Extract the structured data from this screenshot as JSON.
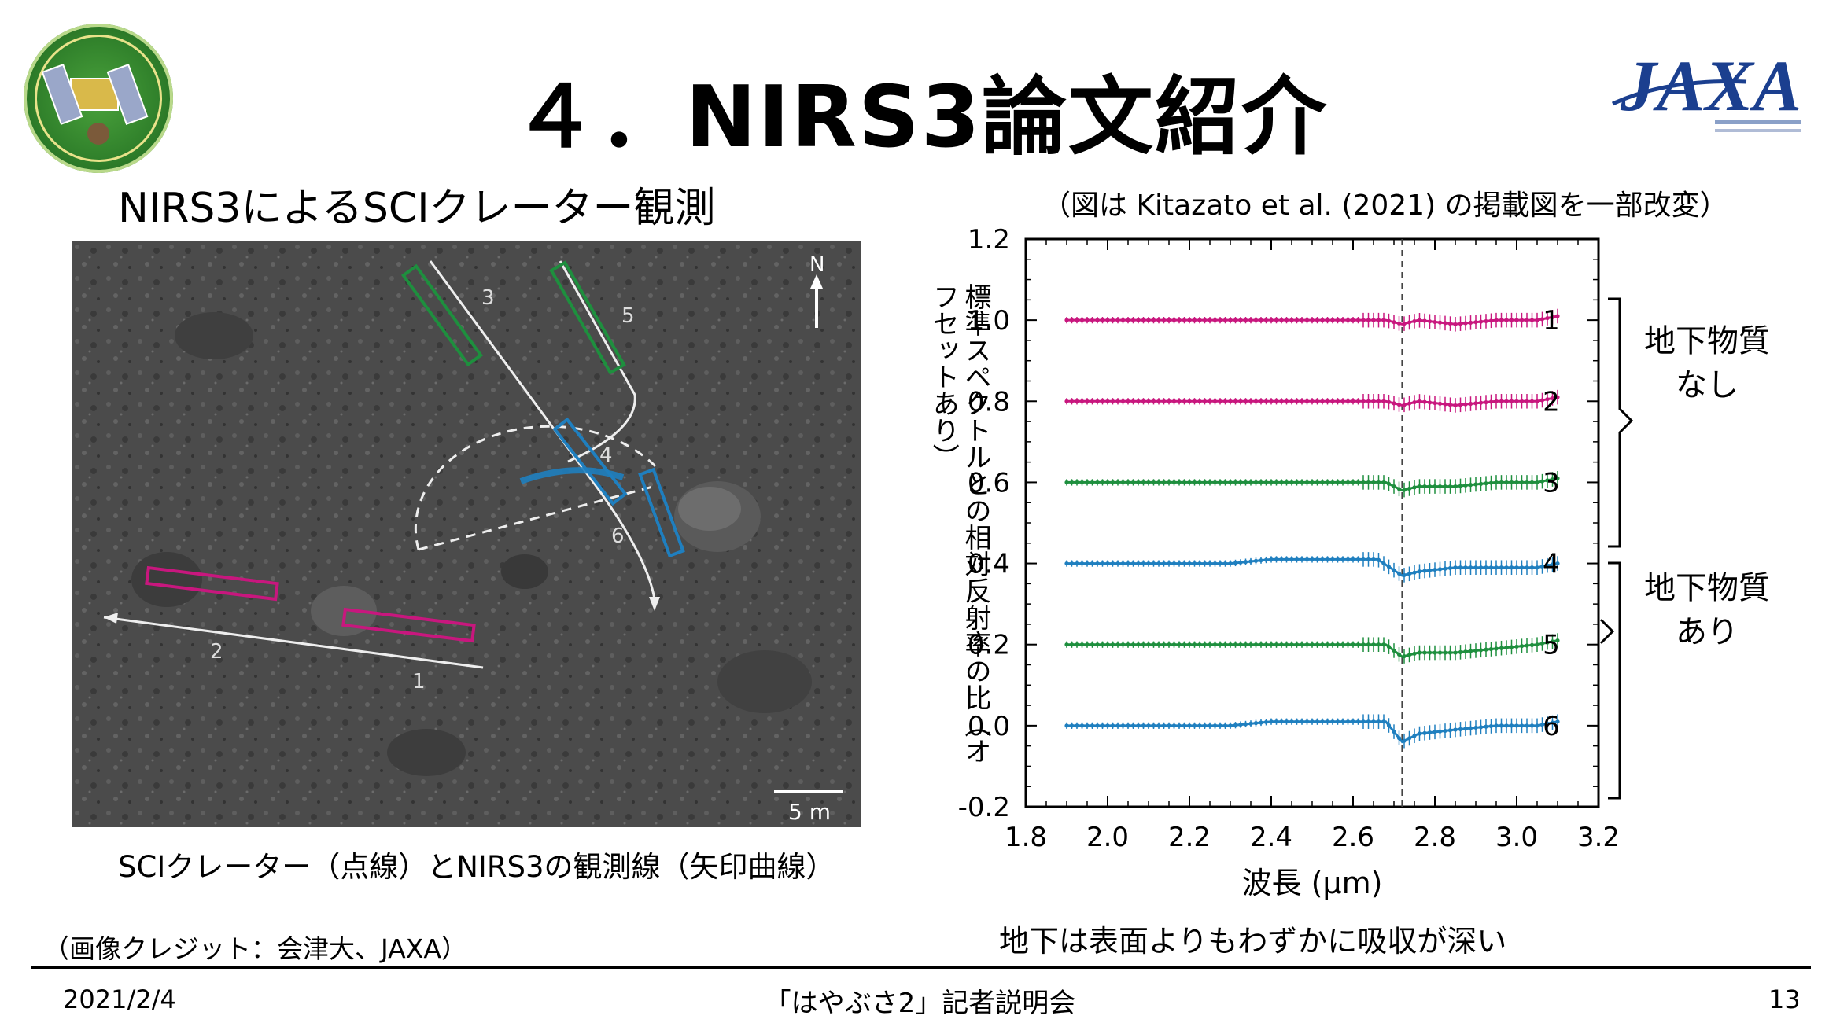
{
  "slide": {
    "title": "４．NIRS3論文紹介",
    "subtitle_left": "NIRS3によるSCIクレーター観測",
    "credit_note": "（図は Kitazato et al. (2021) の掲載図を一部改変）",
    "photo_caption": "SCIクレーター（点線）とNIRS3の観測線（矢印曲線）",
    "image_credit": "（画像クレジット：会津大、JAXA）",
    "note_bottom": "地下は表面よりもわずかに吸収が深い",
    "bracket_label_1": [
      "地下物質",
      "なし"
    ],
    "bracket_label_2": [
      "地下物質",
      "あり"
    ],
    "footer_date": "2021/2/4",
    "footer_event": "「はやぶさ2」記者説明会",
    "footer_page": "13"
  },
  "logos": {
    "hayabusa2_logo": "HAYABUSA2 mission emblem",
    "jaxa_logo": "JAXA"
  },
  "photo": {
    "north_label": "N",
    "scale_label": "5 m",
    "track_labels": [
      "1",
      "2",
      "3",
      "4",
      "5",
      "6"
    ]
  },
  "colors": {
    "magenta": "#c8177e",
    "green": "#1e8f3e",
    "blue": "#1f7fbf"
  },
  "chart_data": {
    "type": "line",
    "xlabel": "波長 (μm)",
    "ylabel": "標準スペクトルとの相対反射率の比（オフセットあり）",
    "xlim": [
      1.8,
      3.2
    ],
    "ylim": [
      -0.2,
      1.2
    ],
    "x_ticks": [
      "1.8",
      "2.0",
      "2.2",
      "2.4",
      "2.6",
      "2.8",
      "3.0",
      "3.2"
    ],
    "y_ticks": [
      "-0.2",
      "0.0",
      "0.2",
      "0.4",
      "0.6",
      "0.8",
      "1.0",
      "1.2"
    ],
    "vline_x": 2.72,
    "series": [
      {
        "name": "1",
        "offset": 1.0,
        "color": "#c8177e",
        "x": [
          1.9,
          2.0,
          2.1,
          2.2,
          2.3,
          2.4,
          2.5,
          2.6,
          2.68,
          2.72,
          2.76,
          2.85,
          2.95,
          3.05,
          3.1
        ],
        "y": [
          1.0,
          1.0,
          1.0,
          1.0,
          1.0,
          1.0,
          1.0,
          1.0,
          1.0,
          0.99,
          1.0,
          0.99,
          1.0,
          1.0,
          1.01
        ]
      },
      {
        "name": "2",
        "offset": 0.8,
        "color": "#c8177e",
        "x": [
          1.9,
          2.0,
          2.1,
          2.2,
          2.3,
          2.4,
          2.5,
          2.6,
          2.68,
          2.72,
          2.76,
          2.85,
          2.95,
          3.05,
          3.1
        ],
        "y": [
          0.8,
          0.8,
          0.8,
          0.8,
          0.8,
          0.8,
          0.8,
          0.8,
          0.8,
          0.79,
          0.8,
          0.79,
          0.8,
          0.8,
          0.81
        ]
      },
      {
        "name": "3",
        "offset": 0.6,
        "color": "#1e8f3e",
        "x": [
          1.9,
          2.0,
          2.1,
          2.2,
          2.3,
          2.4,
          2.5,
          2.6,
          2.68,
          2.72,
          2.76,
          2.85,
          2.95,
          3.05,
          3.1
        ],
        "y": [
          0.6,
          0.6,
          0.6,
          0.6,
          0.6,
          0.6,
          0.6,
          0.6,
          0.6,
          0.58,
          0.59,
          0.59,
          0.6,
          0.6,
          0.61
        ]
      },
      {
        "name": "4",
        "offset": 0.4,
        "color": "#1f7fbf",
        "x": [
          1.9,
          2.0,
          2.1,
          2.2,
          2.3,
          2.4,
          2.5,
          2.6,
          2.66,
          2.72,
          2.76,
          2.85,
          2.95,
          3.05,
          3.1
        ],
        "y": [
          0.4,
          0.4,
          0.4,
          0.4,
          0.4,
          0.41,
          0.41,
          0.41,
          0.41,
          0.37,
          0.38,
          0.39,
          0.39,
          0.39,
          0.4
        ]
      },
      {
        "name": "5",
        "offset": 0.2,
        "color": "#1e8f3e",
        "x": [
          1.9,
          2.0,
          2.1,
          2.2,
          2.3,
          2.4,
          2.5,
          2.6,
          2.68,
          2.72,
          2.76,
          2.85,
          2.95,
          3.05,
          3.1
        ],
        "y": [
          0.2,
          0.2,
          0.2,
          0.2,
          0.2,
          0.2,
          0.2,
          0.2,
          0.2,
          0.17,
          0.18,
          0.18,
          0.19,
          0.2,
          0.21
        ]
      },
      {
        "name": "6",
        "offset": 0.0,
        "color": "#1f7fbf",
        "x": [
          1.9,
          2.0,
          2.1,
          2.2,
          2.3,
          2.4,
          2.5,
          2.6,
          2.68,
          2.72,
          2.76,
          2.85,
          2.95,
          3.05,
          3.1
        ],
        "y": [
          0.0,
          0.0,
          0.0,
          0.0,
          0.0,
          0.01,
          0.01,
          0.01,
          0.01,
          -0.04,
          -0.02,
          -0.01,
          0.0,
          0.0,
          0.01
        ]
      }
    ]
  }
}
